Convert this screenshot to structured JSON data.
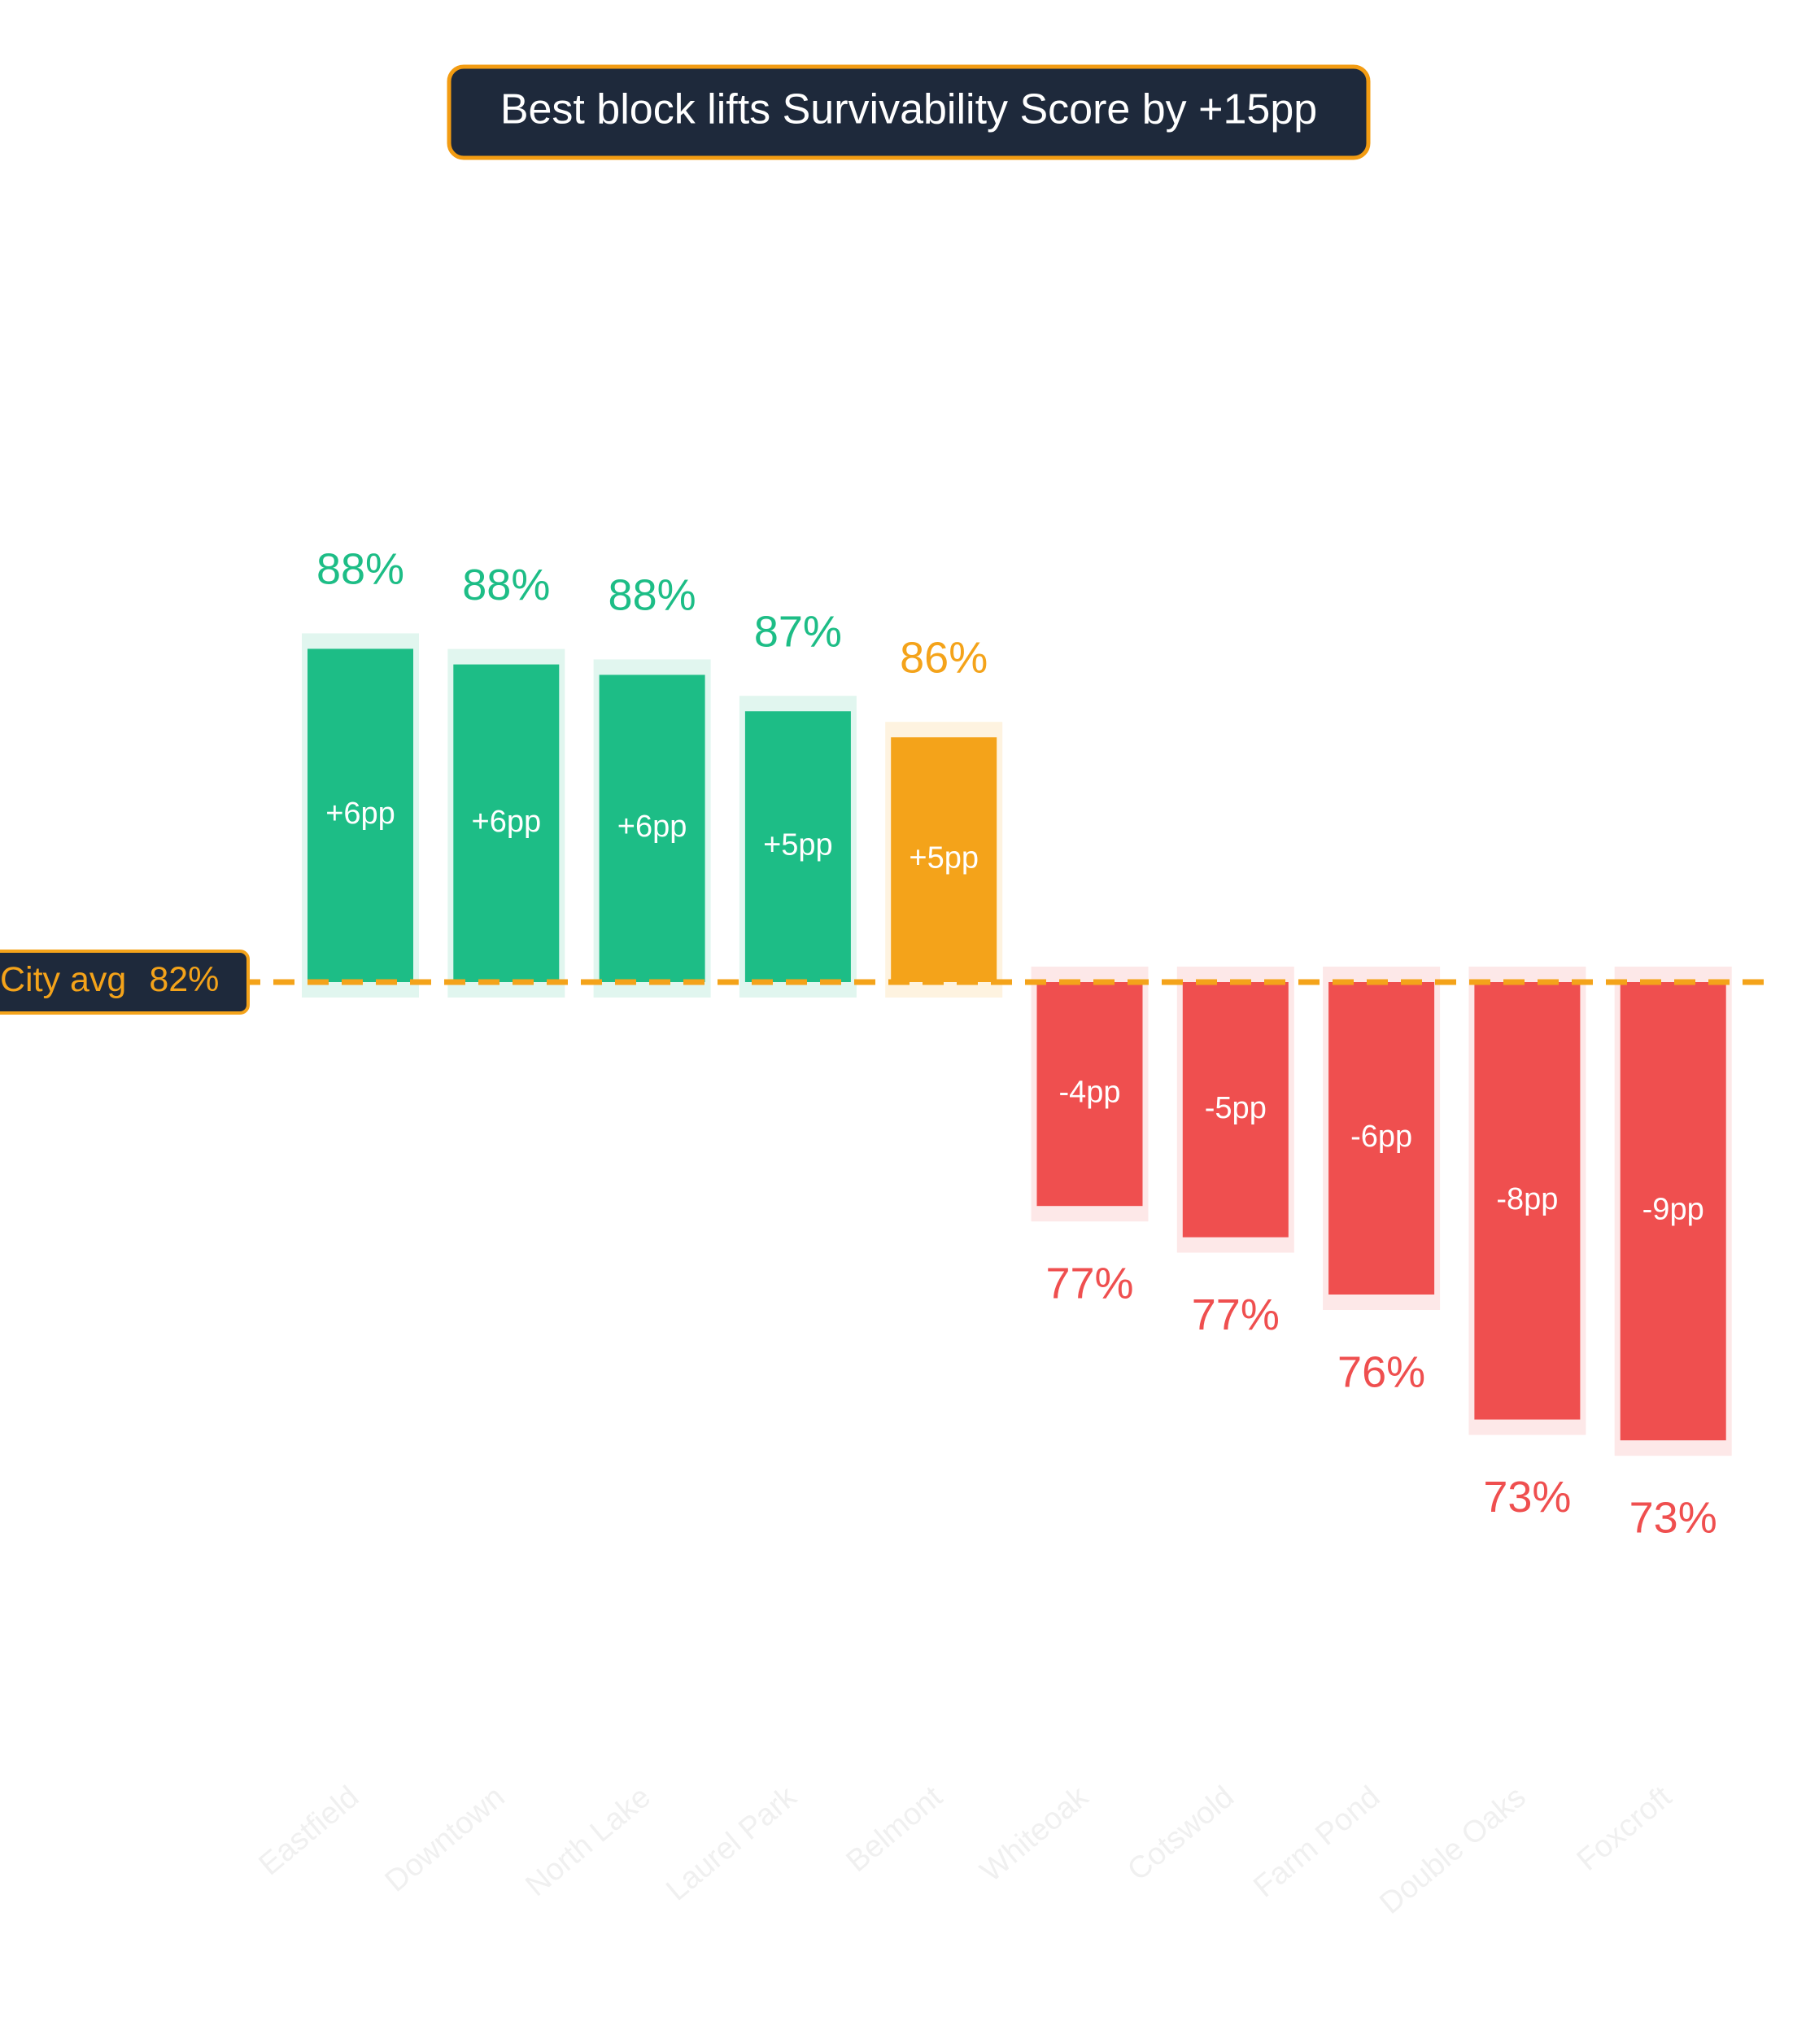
{
  "chart_data": {
    "type": "diverging_bar",
    "title": "Best block lifts Survivability Score by +15pp",
    "categories": [
      "Eastfield",
      "Downtown",
      "North Lake",
      "Laurel Park",
      "Belmont",
      "Whiteoak",
      "Cotswold",
      "Farm Pond",
      "Double Oaks",
      "Foxcroft"
    ],
    "values": [
      88.0,
      87.7,
      87.5,
      86.8,
      86.3,
      77.3,
      76.7,
      75.6,
      73.2,
      72.8
    ],
    "value_labels": [
      "88%",
      "88%",
      "88%",
      "87%",
      "86%",
      "77%",
      "77%",
      "76%",
      "73%",
      "73%"
    ],
    "delta_labels": [
      "+6pp",
      "+6pp",
      "+6pp",
      "+5pp",
      "+5pp",
      "-4pp",
      "-5pp",
      "-6pp",
      "-8pp",
      "-9pp"
    ],
    "colors": [
      "#1dbd86",
      "#1dbd86",
      "#1dbd86",
      "#1dbd86",
      "#f4a31a",
      "#ef4f4f",
      "#ef4f4f",
      "#ef4f4f",
      "#ef4f4f",
      "#ef4f4f"
    ],
    "reference": {
      "value": 81.6,
      "label": "City avg",
      "value_label": "82%",
      "color": "#f4a31a"
    }
  }
}
